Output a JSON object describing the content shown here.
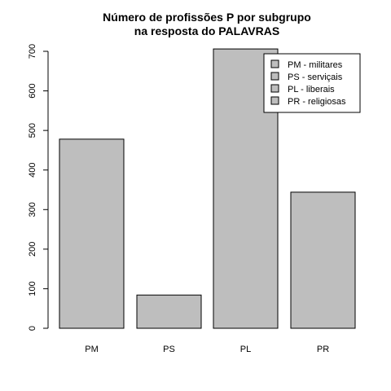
{
  "chart_data": {
    "type": "bar",
    "title_lines": [
      "Número de profissões P por subgrupo",
      "na resposta do PALAVRAS"
    ],
    "categories": [
      "PM",
      "PS",
      "PL",
      "PR"
    ],
    "values": [
      478,
      84,
      706,
      344
    ],
    "xlabel": "",
    "ylabel": "",
    "ylim": [
      0,
      700
    ],
    "yticks": [
      0,
      100,
      200,
      300,
      400,
      500,
      600,
      700
    ],
    "grid": false,
    "bar_color": "#bebebe",
    "legend": {
      "placement": "top-right",
      "entries": [
        "PM - militares",
        "PS - serviçais",
        "PL - liberais",
        "PR - religiosas"
      ]
    }
  }
}
